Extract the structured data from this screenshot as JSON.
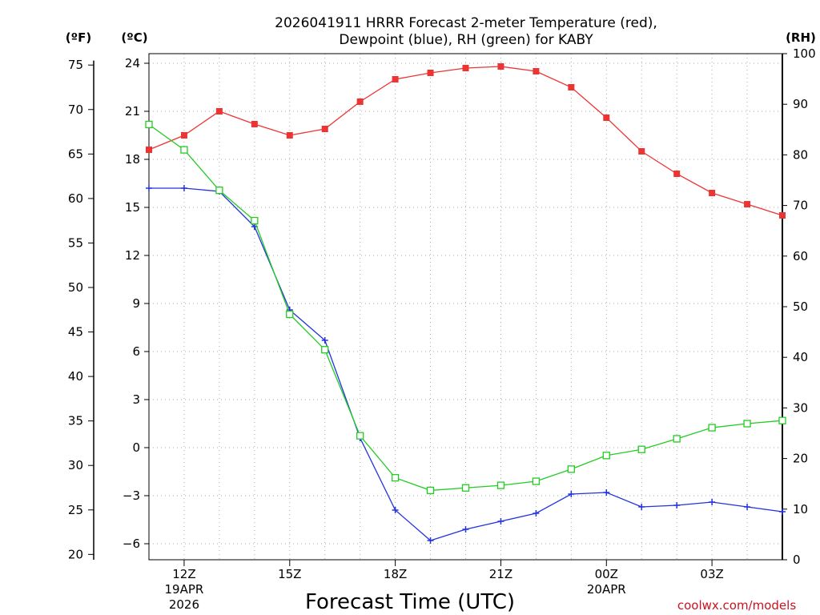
{
  "chart_data": {
    "type": "line",
    "title_line1": "2026041911 HRRR Forecast 2-meter Temperature (red),",
    "title_line2": "Dewpoint (blue), RH (green) for KABY",
    "xlabel": "Forecast Time (UTC)",
    "credit": "coolwx.com/models",
    "unit_f": "(ºF)",
    "unit_c": "(ºC)",
    "unit_rh": "(RH)",
    "x_hours": [
      11,
      12,
      13,
      14,
      15,
      16,
      17,
      18,
      19,
      20,
      21,
      22,
      23,
      24,
      25,
      26,
      27,
      28,
      29
    ],
    "xlim": [
      11,
      29
    ],
    "x_ticks": [
      {
        "hour": 12,
        "label": "12Z",
        "date1": "19APR",
        "date2": "2026"
      },
      {
        "hour": 15,
        "label": "15Z",
        "date1": "",
        "date2": ""
      },
      {
        "hour": 18,
        "label": "18Z",
        "date1": "",
        "date2": ""
      },
      {
        "hour": 21,
        "label": "21Z",
        "date1": "",
        "date2": ""
      },
      {
        "hour": 24,
        "label": "00Z",
        "date1": "20APR",
        "date2": ""
      },
      {
        "hour": 27,
        "label": "03Z",
        "date1": "",
        "date2": ""
      }
    ],
    "c_axis": {
      "range": [
        -7,
        24.6
      ],
      "ticks": [
        24,
        21,
        18,
        15,
        12,
        9,
        6,
        3,
        0,
        -3,
        -6
      ],
      "tick_labels": [
        "24",
        "21",
        "18",
        "15",
        "12",
        "9",
        "6",
        "3",
        "0",
        "−3",
        "−6"
      ]
    },
    "f_axis": {
      "ticks": [
        75,
        70,
        65,
        60,
        55,
        50,
        45,
        40,
        35,
        30,
        25,
        20
      ],
      "tick_labels": [
        "75",
        "70",
        "65",
        "60",
        "55",
        "50",
        "45",
        "40",
        "35",
        "30",
        "25",
        "20"
      ]
    },
    "rh_axis": {
      "range": [
        0,
        100
      ],
      "ticks": [
        100,
        90,
        80,
        70,
        60,
        50,
        40,
        30,
        20,
        10,
        0
      ],
      "tick_labels": [
        "100",
        "90",
        "80",
        "70",
        "60",
        "50",
        "40",
        "30",
        "20",
        "10",
        "0"
      ]
    },
    "series": [
      {
        "name": "Temperature",
        "axis": "c",
        "color": "#ee3333",
        "marker": "filled-square",
        "values": [
          18.6,
          19.5,
          21.0,
          20.2,
          19.5,
          19.9,
          21.6,
          23.0,
          23.4,
          23.7,
          23.8,
          23.5,
          22.5,
          20.6,
          18.5,
          17.1,
          15.9,
          15.2,
          14.5
        ]
      },
      {
        "name": "Dewpoint",
        "axis": "c",
        "color": "#2233dd",
        "marker": "plus",
        "values": [
          16.2,
          16.2,
          16.0,
          13.8,
          8.6,
          6.7,
          0.6,
          -3.9,
          -5.8,
          -5.1,
          -4.6,
          -4.1,
          -2.9,
          -2.8,
          -3.7,
          -3.6,
          -3.4,
          -3.7,
          -4.0
        ]
      },
      {
        "name": "RH",
        "axis": "rh",
        "color": "#22cc22",
        "marker": "open-square",
        "values": [
          86,
          81,
          73,
          67,
          48.5,
          41.5,
          24.5,
          16.2,
          13.7,
          14.2,
          14.7,
          15.5,
          17.9,
          20.6,
          21.8,
          23.9,
          26.1,
          26.9,
          27.5
        ]
      }
    ]
  }
}
